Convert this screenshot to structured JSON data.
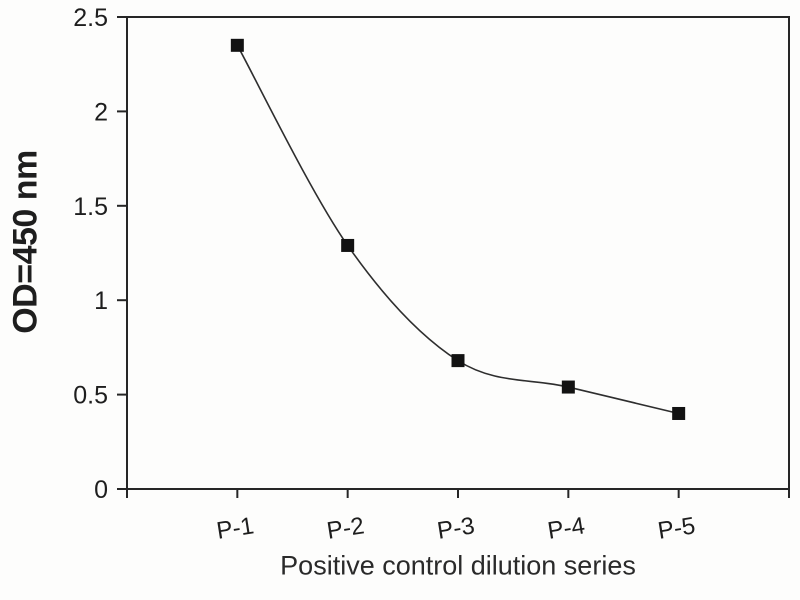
{
  "figure": {
    "background": "#fdfdfc",
    "text_color": "#1e1e1e",
    "axis_color": "#262626"
  },
  "chart_data": {
    "type": "line",
    "title": "",
    "categories": [
      "P-1",
      "P-2",
      "P-3",
      "P-4",
      "P-5"
    ],
    "series": [
      {
        "name": "Positive control",
        "values": [
          2.35,
          1.29,
          0.68,
          0.54,
          0.4
        ]
      }
    ],
    "xlabel": "Positive control dilution series",
    "ylabel": "OD=450 nm",
    "ylim": [
      0,
      2.5
    ],
    "yticks": [
      0,
      0.5,
      1,
      1.5,
      2,
      2.5
    ],
    "ytick_labels": [
      "0",
      "0.5",
      "1",
      "1.5",
      "2",
      "2.5"
    ],
    "grid": false,
    "legend": "none",
    "marker": "square",
    "smooth": true,
    "line_color": "#2e2e2e",
    "marker_color": "#121212"
  }
}
